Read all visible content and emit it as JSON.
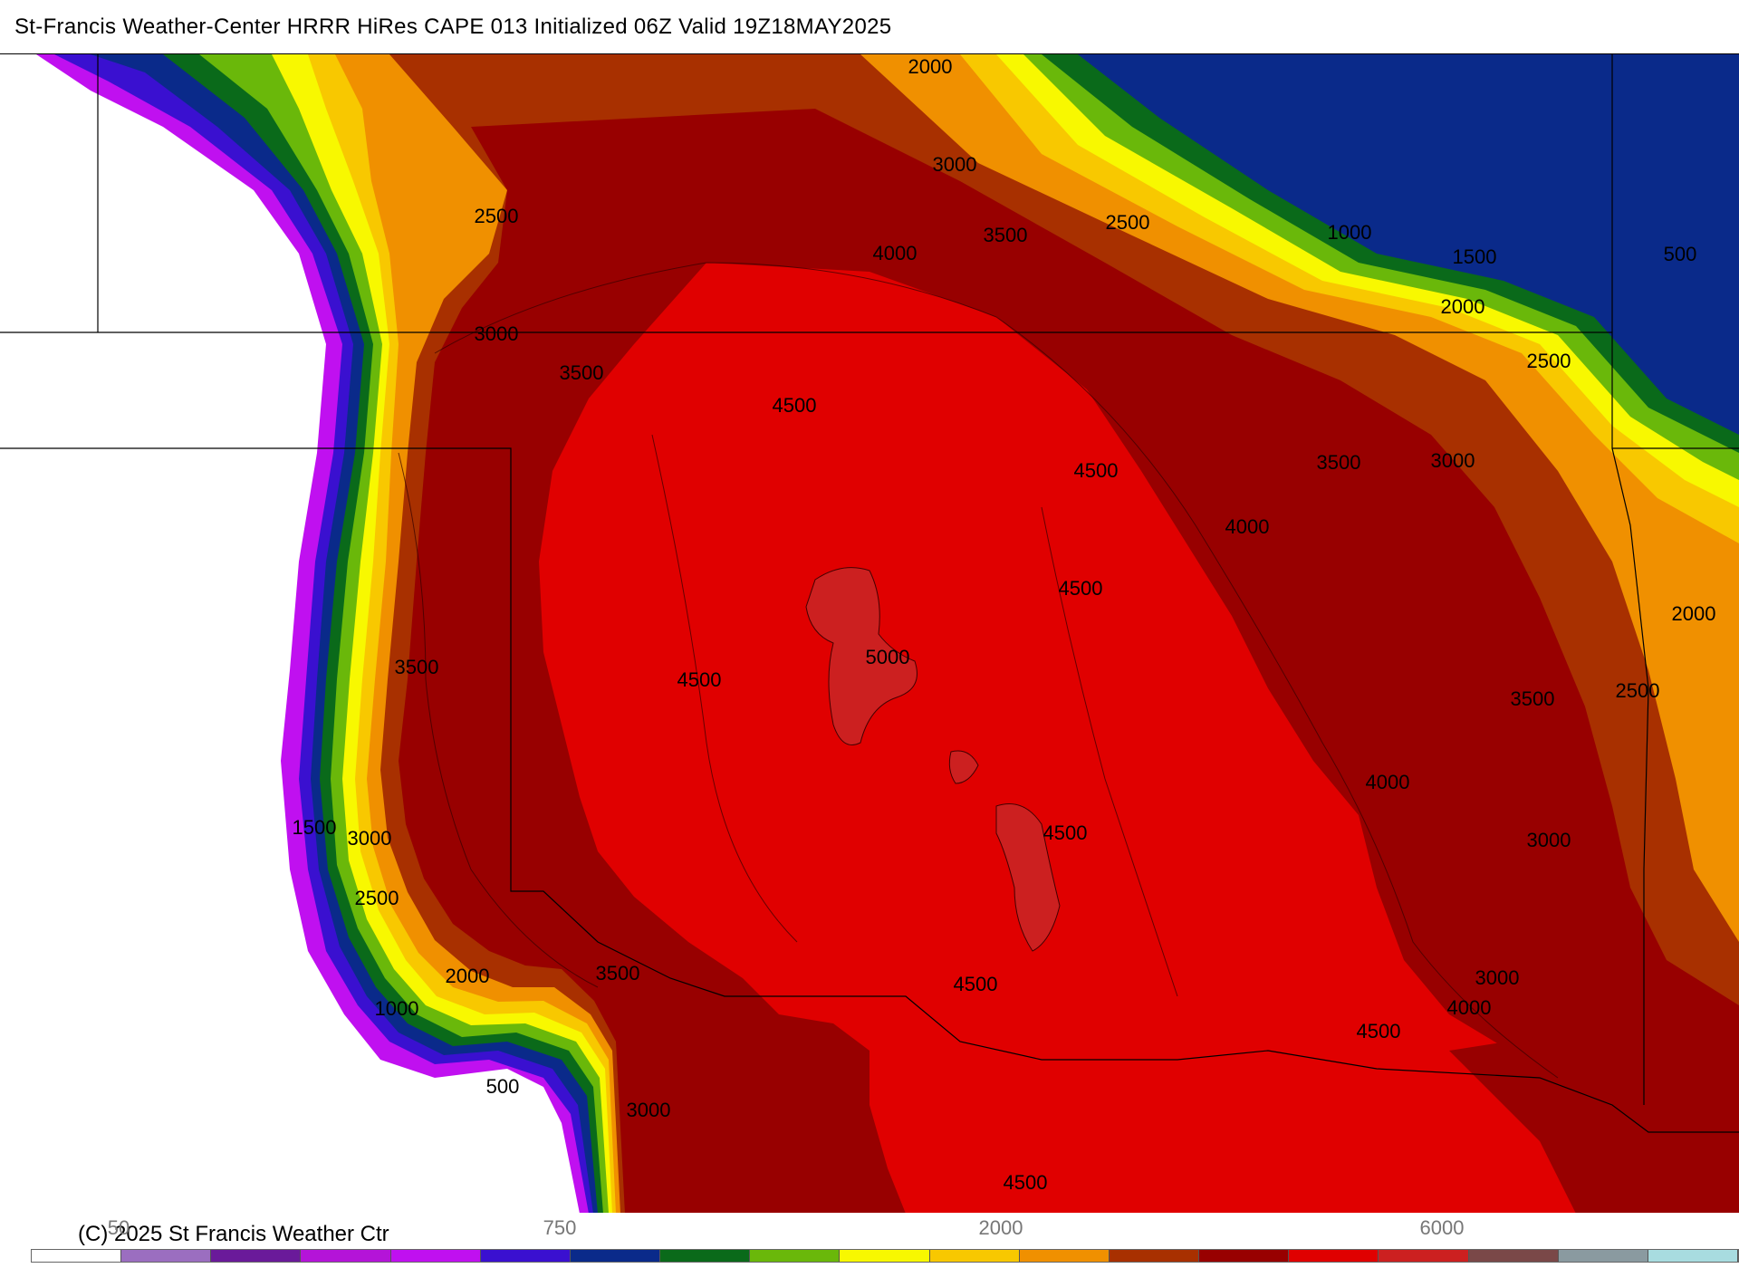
{
  "title": "St-Francis Weather-Center HRRR HiRes CAPE  013 Initialized  06Z Valid 19Z18MAY2025",
  "copyright": "(C) 2025 St Francis Weather Ctr",
  "colorbar": {
    "ticks": [
      "50",
      "750",
      "2000",
      "6000"
    ],
    "colors": [
      "#ffffff",
      "#9b6ec0",
      "#6a1a9a",
      "#b414d8",
      "#c010f0",
      "#3a10d0",
      "#0a2a8a",
      "#0a6a1a",
      "#6ab80a",
      "#f8f800",
      "#f8c800",
      "#f09000",
      "#a83000",
      "#980000",
      "#e00000",
      "#cc2020",
      "#7a4848",
      "#8a9aa0",
      "#a8dce0"
    ]
  },
  "contour_labels": [
    "2000",
    "3000",
    "2500",
    "3500",
    "4000",
    "2500",
    "1000",
    "1500",
    "500",
    "2000",
    "3000",
    "3500",
    "2500",
    "4500",
    "4500",
    "3500",
    "3000",
    "4000",
    "4500",
    "2000",
    "3500",
    "5000",
    "4500",
    "3500",
    "2500",
    "4000",
    "3000",
    "1500",
    "3000",
    "4500",
    "2500",
    "3500",
    "2000",
    "4500",
    "4000",
    "1000",
    "3000",
    "4500",
    "500",
    "3000",
    "4500"
  ]
}
